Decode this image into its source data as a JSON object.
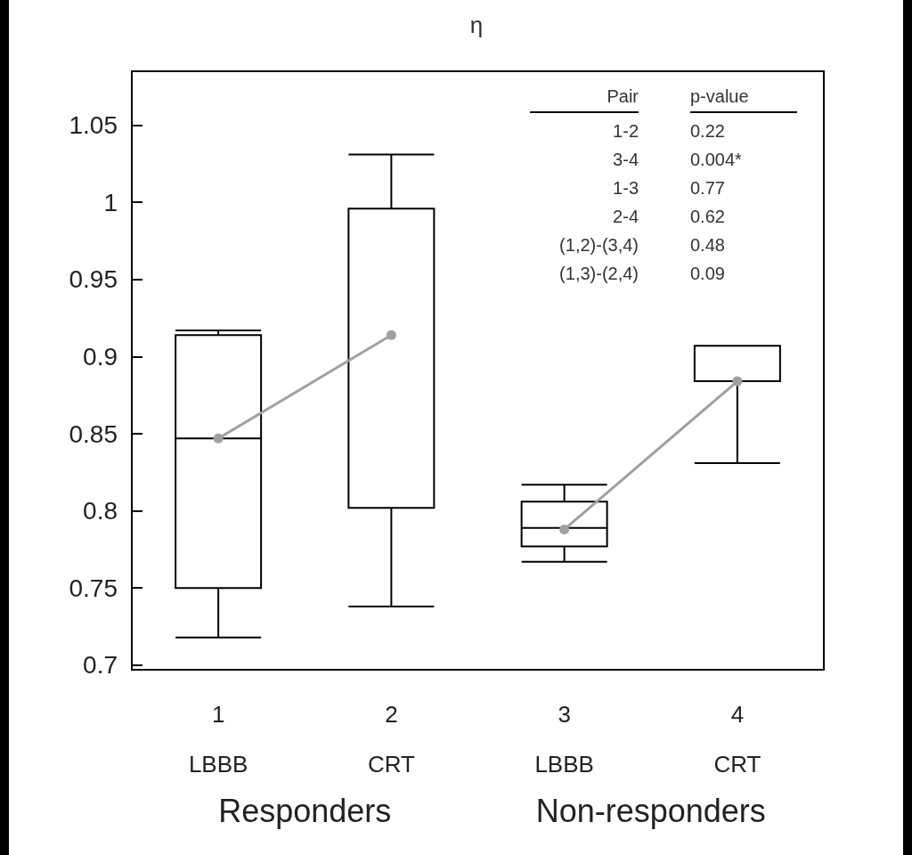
{
  "chart_data": {
    "type": "box",
    "title": "η",
    "categories": [
      "1\nLBBB",
      "2\nCRT",
      "3\nLBBB",
      "4\nCRT"
    ],
    "series": [
      {
        "color": "#000000",
        "boxes": [
          {
            "low": 0.718,
            "q1": 0.75,
            "median": 0.847,
            "q3": 0.914,
            "high": 0.917
          },
          {
            "low": 0.738,
            "q1": 0.802,
            "median": 0.996,
            "q3": 0.996,
            "high": 1.031
          },
          {
            "low": 0.767,
            "q1": 0.777,
            "median": 0.789,
            "q3": 0.806,
            "high": 0.817
          },
          {
            "low": 0.831,
            "q1": 0.884,
            "median": 0.884,
            "q3": 0.907,
            "high": 0.907
          }
        ]
      },
      {
        "type": "line",
        "color": "#a0a0a0",
        "values": [
          0.847,
          0.914,
          null,
          null
        ]
      },
      {
        "type": "line",
        "color": "#a0a0a0",
        "values": [
          null,
          null,
          0.788,
          0.884
        ]
      }
    ],
    "ylim": [
      0.697,
      1.085
    ],
    "yticks": [
      0.7,
      0.75,
      0.8,
      0.85,
      0.9,
      0.95,
      1,
      1.05
    ],
    "grid": false,
    "marker": "circle",
    "line_style": "solid",
    "annotations": [
      "Responders",
      "Non-responders",
      "Pair",
      "p-value",
      "1-2",
      "0.22",
      "3-4",
      "0.004*",
      "1-3",
      "0.77",
      "2-4",
      "0.62",
      "(1,2)-(3,4)",
      "0.48",
      "(1,3)-(2,4)",
      "0.09"
    ]
  }
}
